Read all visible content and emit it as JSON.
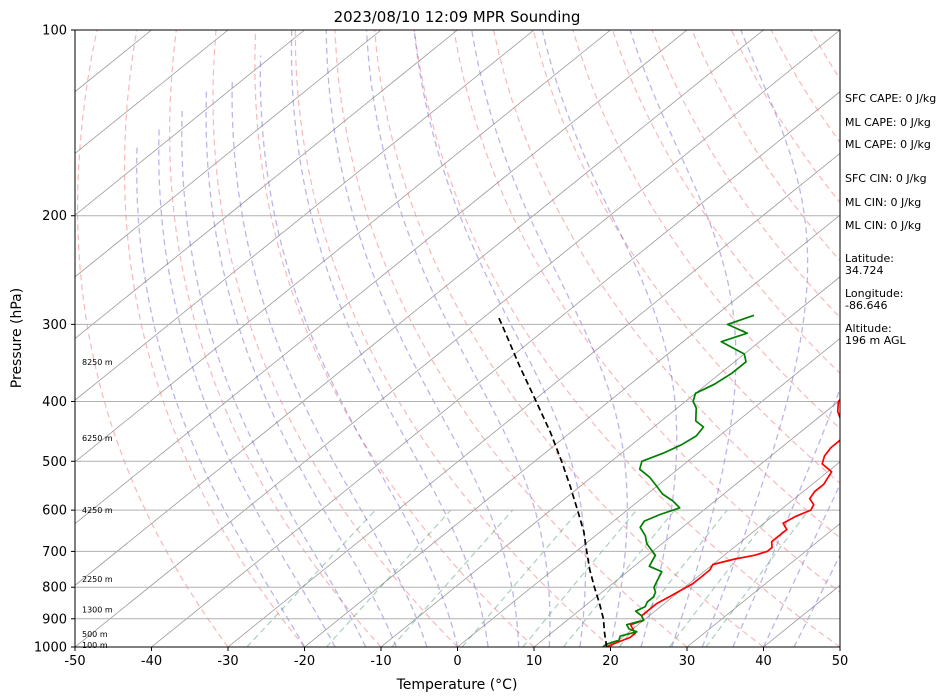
{
  "chart_data": {
    "type": "line",
    "title": "2023/08/10 12:09 MPR Sounding",
    "xlabel": "Temperature (°C)",
    "ylabel": "Pressure (hPa)",
    "x_ticks": [
      -50,
      -40,
      -30,
      -20,
      -10,
      0,
      10,
      20,
      30,
      40,
      50
    ],
    "y_ticks": [
      100,
      200,
      300,
      400,
      500,
      600,
      700,
      800,
      900,
      1000
    ],
    "xlim": [
      -50,
      50
    ],
    "ylim": [
      1000,
      100
    ],
    "y_scale": "log",
    "skew": true,
    "grid": true,
    "height_labels": [
      {
        "text": "100 m",
        "p": 993
      },
      {
        "text": "500 m",
        "p": 953
      },
      {
        "text": "1300 m",
        "p": 870
      },
      {
        "text": "2250 m",
        "p": 776
      },
      {
        "text": "4250 m",
        "p": 600
      },
      {
        "text": "6250 m",
        "p": 458
      },
      {
        "text": "8250 m",
        "p": 345
      }
    ],
    "series": [
      {
        "name": "temperature",
        "color": "#ff0000",
        "points": [
          [
            1000,
            19.5
          ],
          [
            990,
            19.8
          ],
          [
            965,
            21.0
          ],
          [
            950,
            21.0
          ],
          [
            935,
            20.0
          ],
          [
            920,
            19.0
          ],
          [
            905,
            20.0
          ],
          [
            890,
            19.0
          ],
          [
            870,
            19.0
          ],
          [
            850,
            19.0
          ],
          [
            830,
            19.5
          ],
          [
            810,
            20.0
          ],
          [
            790,
            20.5
          ],
          [
            770,
            20.5
          ],
          [
            750,
            20.5
          ],
          [
            735,
            20.0
          ],
          [
            720,
            22.0
          ],
          [
            710,
            24.0
          ],
          [
            700,
            25.0
          ],
          [
            690,
            25.0
          ],
          [
            675,
            24.0
          ],
          [
            660,
            24.0
          ],
          [
            645,
            24.0
          ],
          [
            630,
            22.5
          ],
          [
            615,
            23.0
          ],
          [
            600,
            24.0
          ],
          [
            588,
            23.5
          ],
          [
            575,
            22.0
          ],
          [
            560,
            21.5
          ],
          [
            545,
            21.5
          ],
          [
            520,
            20.5
          ],
          [
            505,
            18.0
          ],
          [
            490,
            17.0
          ],
          [
            475,
            16.5
          ],
          [
            460,
            16.5
          ],
          [
            445,
            15.5
          ],
          [
            430,
            13.5
          ],
          [
            415,
            11.5
          ],
          [
            400,
            10.0
          ],
          [
            385,
            9.5
          ],
          [
            370,
            9.0
          ],
          [
            355,
            7.5
          ],
          [
            340,
            6.5
          ],
          [
            325,
            5.5
          ],
          [
            315,
            5.0
          ],
          [
            305,
            4.0
          ],
          [
            295,
            3.0
          ],
          [
            285,
            1.5
          ]
        ]
      },
      {
        "name": "dewpoint",
        "color": "#008000",
        "points": [
          [
            1000,
            19.0
          ],
          [
            990,
            19.0
          ],
          [
            975,
            20.0
          ],
          [
            960,
            19.5
          ],
          [
            945,
            21.0
          ],
          [
            935,
            19.5
          ],
          [
            920,
            18.5
          ],
          [
            905,
            20.0
          ],
          [
            890,
            19.0
          ],
          [
            875,
            17.5
          ],
          [
            860,
            18.0
          ],
          [
            845,
            17.5
          ],
          [
            830,
            17.5
          ],
          [
            815,
            17.0
          ],
          [
            800,
            16.0
          ],
          [
            785,
            15.5
          ],
          [
            770,
            15.0
          ],
          [
            755,
            14.5
          ],
          [
            740,
            12.0
          ],
          [
            725,
            11.5
          ],
          [
            710,
            11.0
          ],
          [
            695,
            9.5
          ],
          [
            680,
            8.0
          ],
          [
            660,
            6.5
          ],
          [
            640,
            4.5
          ],
          [
            625,
            4.0
          ],
          [
            610,
            5.0
          ],
          [
            595,
            6.5
          ],
          [
            580,
            4.5
          ],
          [
            565,
            2.0
          ],
          [
            545,
            -0.5
          ],
          [
            530,
            -2.5
          ],
          [
            515,
            -5.0
          ],
          [
            500,
            -6.0
          ],
          [
            485,
            -4.5
          ],
          [
            470,
            -3.5
          ],
          [
            455,
            -3.0
          ],
          [
            440,
            -3.5
          ],
          [
            430,
            -5.5
          ],
          [
            420,
            -6.5
          ],
          [
            410,
            -7.5
          ],
          [
            400,
            -9.0
          ],
          [
            388,
            -10.0
          ],
          [
            375,
            -9.0
          ],
          [
            360,
            -8.5
          ],
          [
            345,
            -8.5
          ],
          [
            335,
            -10.0
          ],
          [
            320,
            -15.0
          ],
          [
            310,
            -13.0
          ],
          [
            300,
            -17.0
          ],
          [
            290,
            -15.0
          ]
        ]
      },
      {
        "name": "parcel",
        "color": "#000000",
        "points": [
          [
            1000,
            19.5
          ],
          [
            950,
            17.0
          ],
          [
            900,
            14.5
          ],
          [
            850,
            11.5
          ],
          [
            800,
            8.2
          ],
          [
            750,
            4.8
          ],
          [
            700,
            1.4
          ],
          [
            650,
            -2.2
          ],
          [
            600,
            -6.5
          ],
          [
            550,
            -11.2
          ],
          [
            500,
            -16.5
          ],
          [
            450,
            -22.5
          ],
          [
            400,
            -29.5
          ],
          [
            350,
            -37.5
          ],
          [
            300,
            -46.5
          ],
          [
            290,
            -48.5
          ]
        ]
      }
    ]
  },
  "info": [
    "SFC CAPE: 0 J/kg",
    "ML CAPE: 0 J/kg",
    "ML CAPE: 0 J/kg",
    "SFC CIN: 0 J/kg",
    "ML CIN: 0 J/kg",
    "ML CIN: 0 J/kg",
    "Latitude:",
    "34.724",
    "Longitude:",
    "-86.646",
    "Altitude:",
    "196 m AGL"
  ]
}
